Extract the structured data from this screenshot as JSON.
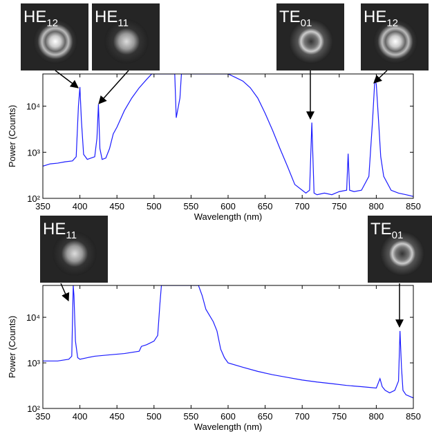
{
  "chart_data": [
    {
      "type": "line",
      "xlabel": "Wavelength (nm)",
      "ylabel": "Power (Counts)",
      "log_y": true,
      "color": "#1a1aff",
      "xlim": [
        350,
        850
      ],
      "xticks": [
        350,
        400,
        450,
        500,
        550,
        600,
        650,
        700,
        750,
        800,
        850
      ],
      "ylim": [
        100,
        50000
      ],
      "yticks": [
        {
          "value": 100,
          "label": "10²"
        },
        {
          "value": 1000,
          "label": "10³"
        },
        {
          "value": 10000,
          "label": "10⁴"
        }
      ],
      "x": [
        350,
        360,
        370,
        380,
        390,
        395,
        398,
        400,
        402,
        405,
        410,
        415,
        420,
        423,
        425,
        427,
        430,
        435,
        440,
        445,
        450,
        460,
        470,
        480,
        490,
        497,
        527,
        528,
        530,
        535,
        537,
        600,
        610,
        620,
        630,
        640,
        650,
        660,
        670,
        680,
        690,
        700,
        705,
        710,
        713,
        716,
        720,
        730,
        740,
        750,
        760,
        762,
        764,
        770,
        780,
        790,
        795,
        798,
        800,
        803,
        806,
        810,
        820,
        830,
        840,
        850
      ],
      "values": [
        500,
        560,
        580,
        620,
        650,
        800,
        10000,
        26000,
        5000,
        900,
        700,
        750,
        800,
        2000,
        11000,
        1200,
        700,
        750,
        1200,
        2500,
        3500,
        8000,
        15000,
        25000,
        38000,
        50000,
        50000,
        50000,
        5600,
        15000,
        50000,
        50000,
        42000,
        35000,
        25000,
        15000,
        7000,
        3000,
        1200,
        500,
        200,
        150,
        130,
        150,
        4400,
        130,
        120,
        130,
        120,
        140,
        150,
        930,
        150,
        140,
        150,
        300,
        5000,
        37000,
        30000,
        5000,
        800,
        300,
        150,
        130,
        120,
        110
      ],
      "annotations": [
        {
          "text": "HE",
          "subscript": "12"
        },
        {
          "text": "HE",
          "subscript": "11"
        },
        {
          "text": "TE",
          "subscript": "01"
        },
        {
          "text": "HE",
          "subscript": "12"
        }
      ]
    },
    {
      "type": "line",
      "xlabel": "Wavelength (nm)",
      "ylabel": "Power (Counts)",
      "log_y": true,
      "color": "#1a1aff",
      "xlim": [
        350,
        850
      ],
      "xticks": [
        350,
        400,
        450,
        500,
        550,
        600,
        650,
        700,
        750,
        800,
        850
      ],
      "ylim": [
        100,
        50000
      ],
      "yticks": [
        {
          "value": 100,
          "label": "10²"
        },
        {
          "value": 1000,
          "label": "10³"
        },
        {
          "value": 10000,
          "label": "10⁴"
        }
      ],
      "x": [
        350,
        370,
        385,
        389,
        391,
        392,
        394,
        397,
        400,
        410,
        420,
        440,
        460,
        480,
        483,
        490,
        500,
        505,
        508,
        510,
        560,
        565,
        570,
        580,
        585,
        590,
        595,
        600,
        620,
        640,
        660,
        680,
        700,
        720,
        740,
        760,
        780,
        800,
        805,
        808,
        812,
        818,
        825,
        830,
        832,
        834,
        836,
        840,
        850
      ],
      "values": [
        1100,
        1100,
        1200,
        1400,
        50000,
        30000,
        3000,
        1300,
        1200,
        1300,
        1400,
        1500,
        1600,
        1800,
        2300,
        2500,
        3000,
        4000,
        20000,
        50000,
        50000,
        30000,
        15000,
        8000,
        5000,
        2000,
        1300,
        1000,
        800,
        650,
        550,
        480,
        420,
        380,
        350,
        320,
        300,
        280,
        450,
        300,
        250,
        220,
        250,
        400,
        5000,
        800,
        250,
        200,
        170
      ],
      "annotations": [
        {
          "text": "HE",
          "subscript": "11"
        },
        {
          "text": "TE",
          "subscript": "01"
        }
      ]
    }
  ]
}
